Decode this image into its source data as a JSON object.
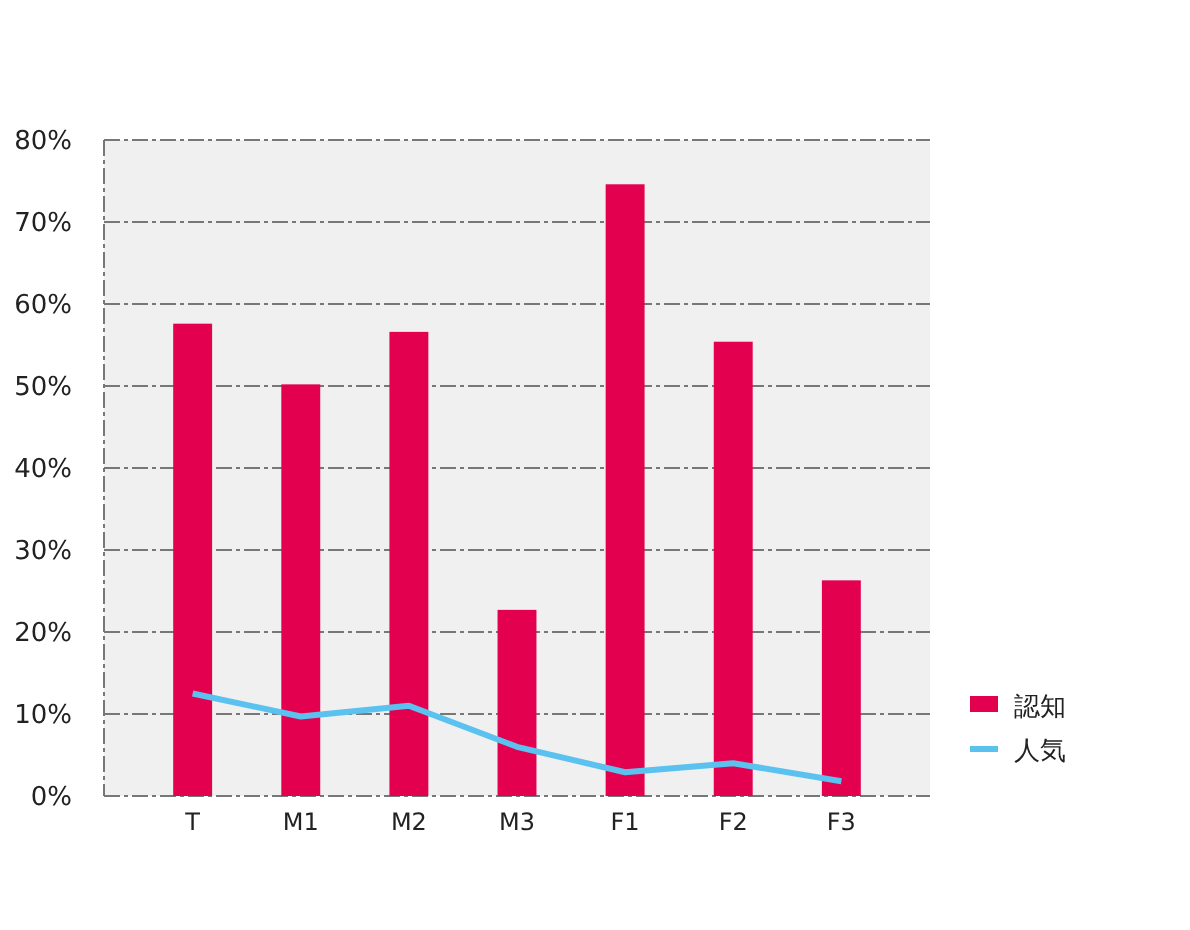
{
  "chart_data": {
    "type": "bar",
    "categories": [
      "T",
      "M1",
      "M2",
      "M3",
      "F1",
      "F2",
      "F3"
    ],
    "series": [
      {
        "name": "認知",
        "color": "#e3004f",
        "values": [
          57.6,
          50.2,
          56.6,
          22.7,
          74.6,
          55.4,
          26.3
        ]
      },
      {
        "name": "人気",
        "type": "line",
        "color": "#5bc2f0",
        "values": [
          12.5,
          9.7,
          11.0,
          6.0,
          2.9,
          4.0,
          1.8
        ]
      }
    ],
    "ylim": [
      0,
      80
    ],
    "yticks": [
      {
        "value": 0,
        "label": "0%"
      },
      {
        "value": 10,
        "label": "10%"
      },
      {
        "value": 20,
        "label": "20%"
      },
      {
        "value": 30,
        "label": "30%"
      },
      {
        "value": 40,
        "label": "40%"
      },
      {
        "value": 50,
        "label": "50%"
      },
      {
        "value": 60,
        "label": "60%"
      },
      {
        "value": 70,
        "label": "70%"
      },
      {
        "value": 80,
        "label": "80%"
      }
    ],
    "grid": "y",
    "legend": "right",
    "marker": "none",
    "line_style": "solid"
  }
}
